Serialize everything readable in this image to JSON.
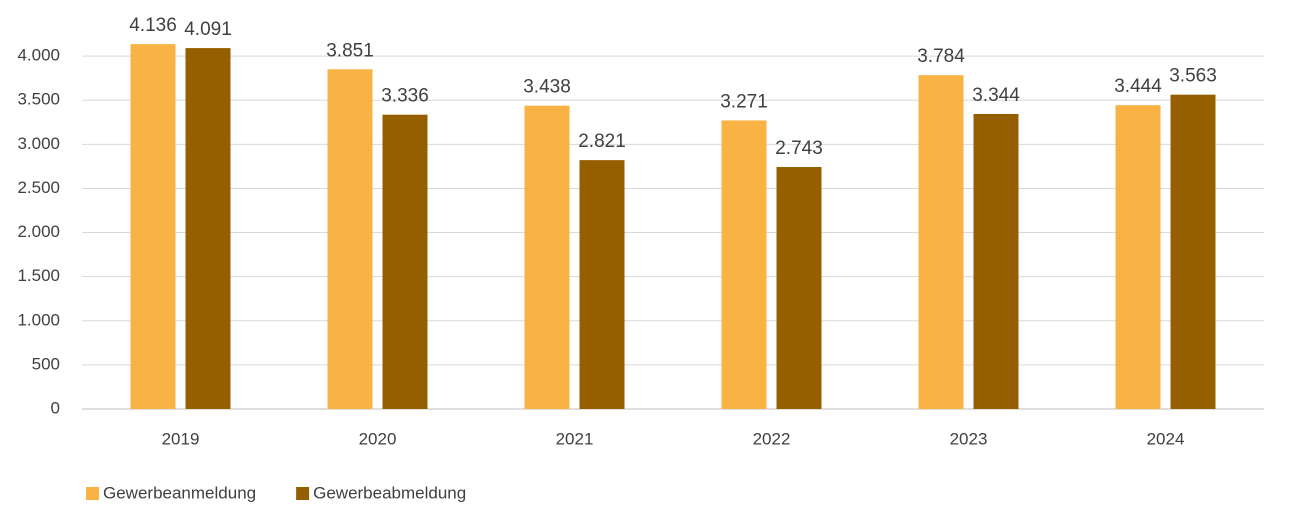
{
  "chart_data": {
    "type": "bar",
    "categories": [
      "2019",
      "2020",
      "2021",
      "2022",
      "2023",
      "2024"
    ],
    "series": [
      {
        "name": "Gewerbeanmeldung",
        "color": "#f9b244",
        "values": [
          4136,
          3851,
          3438,
          3271,
          3784,
          3444
        ],
        "value_labels": [
          "4.136",
          "3.851",
          "3.438",
          "3.271",
          "3.784",
          "3.444"
        ]
      },
      {
        "name": "Gewerbeabmeldung",
        "color": "#955f00",
        "values": [
          4091,
          3336,
          2821,
          2743,
          3344,
          3563
        ],
        "value_labels": [
          "4.091",
          "3.336",
          "2.821",
          "2.743",
          "3.344",
          "3.563"
        ]
      }
    ],
    "ylim": [
      0,
      4500
    ],
    "yticks": [
      0,
      500,
      {
        "value": 1000,
        "label": "1.000"
      },
      {
        "value": 1500,
        "label": "1.500"
      },
      {
        "value": 2000,
        "label": "2.000"
      },
      {
        "value": 2500,
        "label": "2.500"
      },
      {
        "value": 3000,
        "label": "3.000"
      },
      {
        "value": 3500,
        "label": "3.500"
      },
      {
        "value": 4000,
        "label": "4.000"
      }
    ],
    "grid": true,
    "legend": "bottom-left"
  }
}
